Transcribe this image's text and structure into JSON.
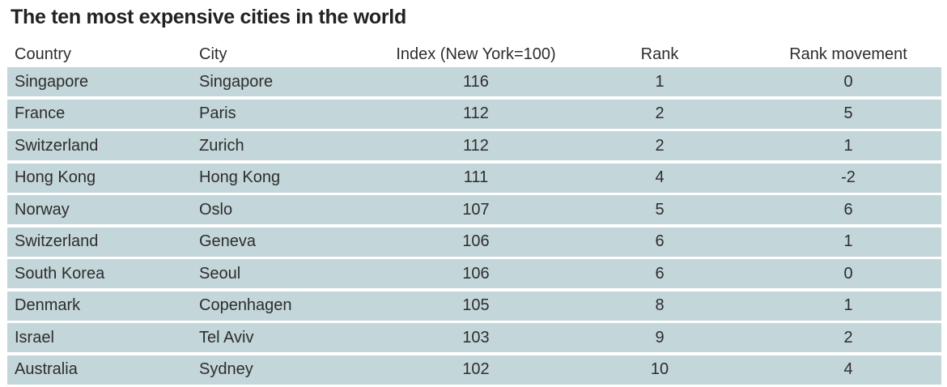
{
  "chart_data": {
    "type": "table",
    "title": "The ten most expensive cities in the world",
    "columns": [
      "Country",
      "City",
      "Index (New York=100)",
      "Rank",
      "Rank movement"
    ],
    "rows": [
      [
        "Singapore",
        "Singapore",
        "116",
        "1",
        "0"
      ],
      [
        "France",
        "Paris",
        "112",
        "2",
        "5"
      ],
      [
        "Switzerland",
        "Zurich",
        "112",
        "2",
        "1"
      ],
      [
        "Hong Kong",
        "Hong Kong",
        "111",
        "4",
        "-2"
      ],
      [
        "Norway",
        "Oslo",
        "107",
        "5",
        "6"
      ],
      [
        "Switzerland",
        "Geneva",
        "106",
        "6",
        "1"
      ],
      [
        "South Korea",
        "Seoul",
        "106",
        "6",
        "0"
      ],
      [
        "Denmark",
        "Copenhagen",
        "105",
        "8",
        "1"
      ],
      [
        "Israel",
        "Tel Aviv",
        "103",
        "9",
        "2"
      ],
      [
        "Australia",
        "Sydney",
        "102",
        "10",
        "4"
      ]
    ]
  },
  "colors": {
    "row_background": "#c3d6da",
    "text": "#2e2d2b",
    "title_text": "#222220"
  }
}
